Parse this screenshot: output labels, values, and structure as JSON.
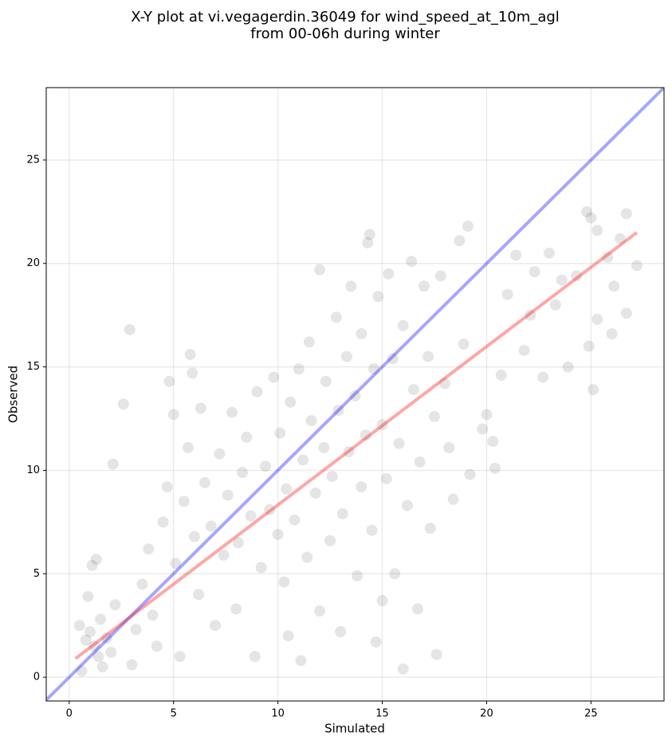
{
  "chart_data": {
    "type": "scatter",
    "title": [
      "X-Y plot at vi.vegagerdin.36049 for wind_speed_at_10m_agl",
      "from 00-06h during winter"
    ],
    "x_label": "Simulated",
    "y_label": "Observed",
    "xlim": [
      -1.1,
      28.5
    ],
    "ylim": [
      -1.15,
      28.5
    ],
    "xticks": [
      0,
      5,
      10,
      15,
      20,
      25
    ],
    "yticks": [
      0,
      5,
      10,
      15,
      20,
      25
    ],
    "grid": true,
    "series": [
      {
        "type": "scatter",
        "color": "#000000",
        "opacity": 0.1,
        "x": [
          0.5,
          0.8,
          1,
          1.2,
          1.4,
          1.5,
          1.6,
          1.8,
          2,
          2.2,
          0.6,
          0.9,
          1.1,
          1.3,
          2.1,
          2.6,
          2.9,
          3,
          3.2,
          3.5,
          3.8,
          4,
          4.2,
          4.5,
          4.7,
          4.8,
          5,
          5.1,
          5.3,
          5.5,
          5.7,
          5.8,
          5.9,
          6,
          6.2,
          6.3,
          6.5,
          6.8,
          7,
          7.2,
          7.4,
          7.6,
          7.8,
          8,
          8.1,
          8.3,
          8.5,
          8.7,
          8.9,
          9,
          9.2,
          9.4,
          9.6,
          9.8,
          10,
          10.1,
          10.3,
          10.4,
          10.5,
          10.6,
          10.8,
          11,
          11.1,
          11.2,
          11.4,
          11.5,
          11.6,
          11.8,
          12,
          12,
          12.2,
          12.3,
          12.5,
          12.6,
          12.8,
          12.9,
          13,
          13.1,
          13.3,
          13.4,
          13.5,
          13.7,
          13.8,
          14,
          14,
          14.2,
          14.3,
          14.4,
          14.5,
          14.6,
          14.7,
          14.8,
          15,
          15,
          15.2,
          15.3,
          15.5,
          15.6,
          15.8,
          16,
          16,
          16.2,
          16.4,
          16.5,
          16.7,
          16.8,
          17,
          17.2,
          17.3,
          17.5,
          17.6,
          17.8,
          18,
          18.2,
          18.4,
          18.7,
          18.9,
          19.1,
          19.2,
          19.8,
          20,
          20.3,
          20.4,
          20.7,
          21,
          21.4,
          21.8,
          22.1,
          22.3,
          22.7,
          23,
          23.3,
          23.6,
          23.9,
          24.3,
          24.8,
          24.9,
          25,
          25.1,
          25.3,
          25.3,
          25.8,
          26,
          26.1,
          26.4,
          26.7,
          26.7,
          27.2
        ],
        "values": [
          2.5,
          1.8,
          2.2,
          1.5,
          1,
          2.8,
          0.5,
          1.9,
          1.2,
          3.5,
          0.3,
          3.9,
          5.4,
          5.7,
          10.3,
          13.2,
          16.8,
          0.6,
          2.3,
          4.5,
          6.2,
          3,
          1.5,
          7.5,
          9.2,
          14.3,
          12.7,
          5.5,
          1,
          8.5,
          11.1,
          15.6,
          14.7,
          6.8,
          4,
          13,
          9.4,
          7.3,
          2.5,
          10.8,
          5.9,
          8.8,
          12.8,
          3.3,
          6.5,
          9.9,
          11.6,
          7.8,
          1,
          13.8,
          5.3,
          10.2,
          8.1,
          14.5,
          6.9,
          11.8,
          4.6,
          9.1,
          2,
          13.3,
          7.6,
          14.9,
          0.8,
          10.5,
          5.8,
          16.2,
          12.4,
          8.9,
          19.7,
          3.2,
          11.1,
          14.3,
          6.6,
          9.7,
          17.4,
          12.9,
          2.2,
          7.9,
          15.5,
          10.9,
          18.9,
          13.6,
          4.9,
          9.2,
          16.6,
          11.7,
          21,
          21.4,
          7.1,
          14.9,
          1.7,
          18.4,
          3.7,
          12.2,
          9.6,
          19.5,
          15.4,
          5,
          11.3,
          0.4,
          17,
          8.3,
          20.1,
          13.9,
          3.3,
          10.4,
          18.9,
          15.5,
          7.2,
          12.6,
          1.1,
          19.4,
          14.2,
          11.1,
          8.6,
          21.1,
          16.1,
          21.8,
          9.8,
          12,
          12.7,
          11.4,
          10.1,
          14.6,
          18.5,
          20.4,
          15.8,
          17.5,
          19.6,
          14.5,
          20.5,
          18,
          19.2,
          15,
          19.4,
          22.5,
          16,
          22.2,
          13.9,
          21.6,
          17.3,
          20.3,
          16.6,
          18.9,
          21.2,
          22.4,
          17.6,
          19.9
        ]
      },
      {
        "type": "line",
        "color": "#0000ff",
        "opacity": 0.35,
        "x": [
          -1.1,
          28.5
        ],
        "values": [
          -1.1,
          28.5
        ]
      },
      {
        "type": "line",
        "color": "#ff0000",
        "opacity": 0.35,
        "x": [
          0.3,
          27.2
        ],
        "values": [
          0.9,
          21.5
        ]
      }
    ]
  }
}
